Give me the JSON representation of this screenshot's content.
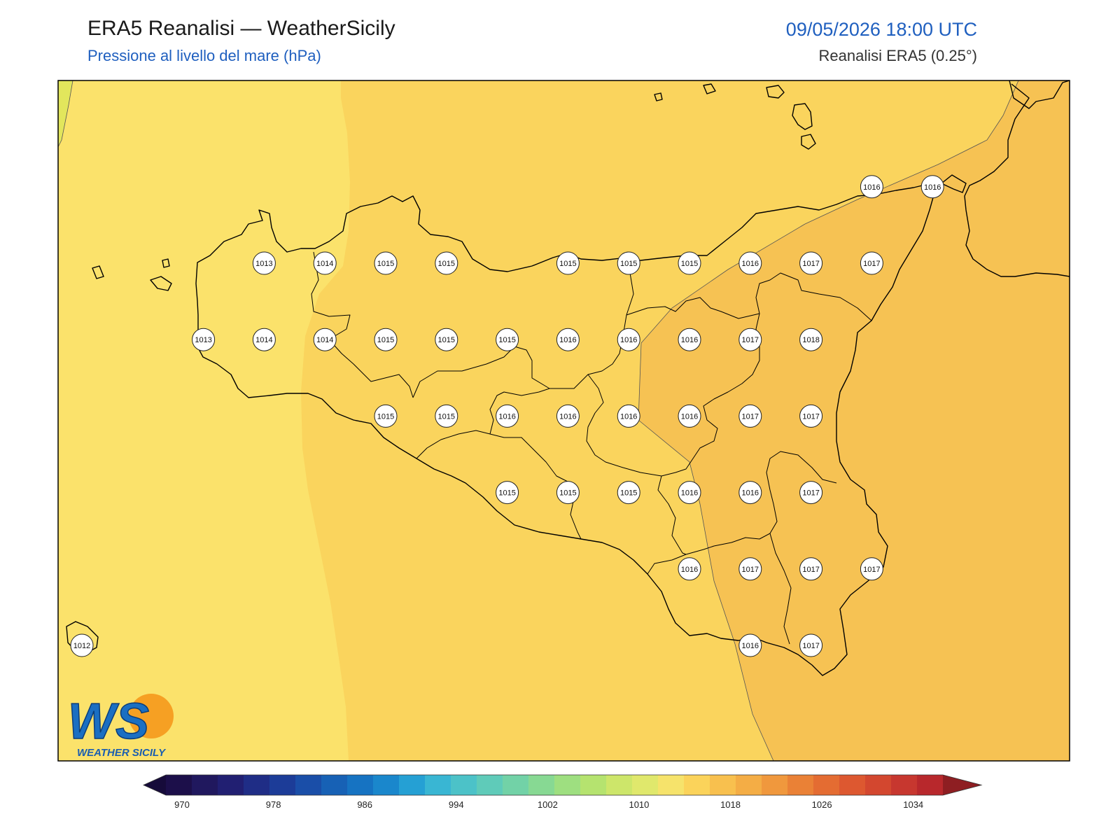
{
  "header": {
    "title": "ERA5 Reanalisi — WeatherSicily",
    "subtitle": "Pressione al livello del mare (hPa)",
    "datetime": "09/05/2026 18:00 UTC",
    "source": "Reanalisi ERA5 (0.25°)"
  },
  "logo": {
    "letters": "WS",
    "text": "WEATHER SICILY"
  },
  "colorbar": {
    "ticks": [
      "970",
      "978",
      "986",
      "994",
      "1002",
      "1010",
      "1018",
      "1026",
      "1034"
    ],
    "colors": [
      "#1c0f4a",
      "#20185e",
      "#211f72",
      "#1f2d86",
      "#1c3c98",
      "#1a4ea8",
      "#1761b5",
      "#1673c2",
      "#1a87cc",
      "#25a0d4",
      "#39b6d3",
      "#4cc2c8",
      "#5fcbb9",
      "#72d2a7",
      "#87d993",
      "#9edf80",
      "#b5e36f",
      "#cde66a",
      "#e0e86c",
      "#f6e36b",
      "#fbd35a",
      "#f8c04e",
      "#f4ad45",
      "#f0983d",
      "#ea8136",
      "#e46c32",
      "#dd5830",
      "#d3472f",
      "#c7372f",
      "#b8282c"
    ],
    "under_color": "#160b3a",
    "over_color": "#8e1e22"
  },
  "fields": {
    "west_sea_color": "#fbe26b",
    "central_color": "#fad45d",
    "east_color": "#f6c253",
    "far_west_strip_color": "#e2e65c"
  },
  "stations": [
    {
      "lat": 38.0,
      "lon": 12.5,
      "value": "1013"
    },
    {
      "lat": 38.0,
      "lon": 13.0,
      "value": "1014"
    },
    {
      "lat": 38.0,
      "lon": 13.5,
      "value": "1015"
    },
    {
      "lat": 38.0,
      "lon": 14.0,
      "value": "1015"
    },
    {
      "lat": 38.0,
      "lon": 15.0,
      "value": "1015"
    },
    {
      "lat": 38.0,
      "lon": 15.5,
      "value": "1015"
    },
    {
      "lat": 38.0,
      "lon": 16.0,
      "value": "1015"
    },
    {
      "lat": 38.0,
      "lon": 16.5,
      "value": "1016"
    },
    {
      "lat": 38.0,
      "lon": 17.0,
      "value": "1017"
    },
    {
      "lat": 38.0,
      "lon": 17.5,
      "value": "1017"
    },
    {
      "lat": 38.5,
      "lon": 17.5,
      "value": "1016"
    },
    {
      "lat": 38.5,
      "lon": 18.0,
      "value": "1016"
    },
    {
      "lat": 37.5,
      "lon": 12.0,
      "value": "1013"
    },
    {
      "lat": 37.5,
      "lon": 12.5,
      "value": "1014"
    },
    {
      "lat": 37.5,
      "lon": 13.0,
      "value": "1014"
    },
    {
      "lat": 37.5,
      "lon": 13.5,
      "value": "1015"
    },
    {
      "lat": 37.5,
      "lon": 14.0,
      "value": "1015"
    },
    {
      "lat": 37.5,
      "lon": 14.5,
      "value": "1015"
    },
    {
      "lat": 37.5,
      "lon": 15.0,
      "value": "1016"
    },
    {
      "lat": 37.5,
      "lon": 15.5,
      "value": "1016"
    },
    {
      "lat": 37.5,
      "lon": 16.0,
      "value": "1016"
    },
    {
      "lat": 37.5,
      "lon": 16.5,
      "value": "1017"
    },
    {
      "lat": 37.5,
      "lon": 17.0,
      "value": "1018"
    },
    {
      "lat": 37.0,
      "lon": 13.5,
      "value": "1015"
    },
    {
      "lat": 37.0,
      "lon": 14.0,
      "value": "1015"
    },
    {
      "lat": 37.0,
      "lon": 14.5,
      "value": "1016"
    },
    {
      "lat": 37.0,
      "lon": 15.0,
      "value": "1016"
    },
    {
      "lat": 37.0,
      "lon": 15.5,
      "value": "1016"
    },
    {
      "lat": 37.0,
      "lon": 16.0,
      "value": "1016"
    },
    {
      "lat": 37.0,
      "lon": 16.5,
      "value": "1017"
    },
    {
      "lat": 37.0,
      "lon": 17.0,
      "value": "1017"
    },
    {
      "lat": 36.5,
      "lon": 14.5,
      "value": "1015"
    },
    {
      "lat": 36.5,
      "lon": 15.0,
      "value": "1015"
    },
    {
      "lat": 36.5,
      "lon": 15.5,
      "value": "1015"
    },
    {
      "lat": 36.5,
      "lon": 16.0,
      "value": "1016"
    },
    {
      "lat": 36.5,
      "lon": 16.5,
      "value": "1016"
    },
    {
      "lat": 36.5,
      "lon": 17.0,
      "value": "1017"
    },
    {
      "lat": 36.0,
      "lon": 16.0,
      "value": "1016"
    },
    {
      "lat": 36.0,
      "lon": 16.5,
      "value": "1017"
    },
    {
      "lat": 36.0,
      "lon": 17.0,
      "value": "1017"
    },
    {
      "lat": 36.0,
      "lon": 17.5,
      "value": "1017"
    },
    {
      "lat": 35.5,
      "lon": 11.0,
      "value": "1012"
    },
    {
      "lat": 35.5,
      "lon": 16.5,
      "value": "1016"
    },
    {
      "lat": 35.5,
      "lon": 17.0,
      "value": "1017"
    }
  ]
}
